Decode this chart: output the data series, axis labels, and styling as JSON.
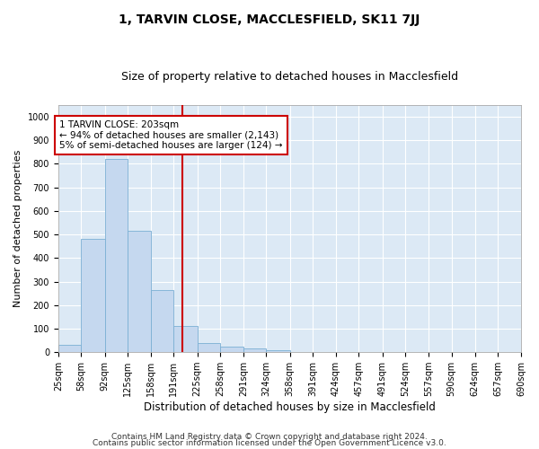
{
  "title": "1, TARVIN CLOSE, MACCLESFIELD, SK11 7JJ",
  "subtitle": "Size of property relative to detached houses in Macclesfield",
  "xlabel": "Distribution of detached houses by size in Macclesfield",
  "ylabel": "Number of detached properties",
  "footnote1": "Contains HM Land Registry data © Crown copyright and database right 2024.",
  "footnote2": "Contains public sector information licensed under the Open Government Licence v3.0.",
  "annotation_line1": "1 TARVIN CLOSE: 203sqm",
  "annotation_line2": "← 94% of detached houses are smaller (2,143)",
  "annotation_line3": "5% of semi-detached houses are larger (124) →",
  "bar_color": "#c5d8ef",
  "bar_edge_color": "#7bafd4",
  "marker_color": "#cc0000",
  "marker_value": 203,
  "bin_edges": [
    25,
    58,
    92,
    125,
    158,
    191,
    225,
    258,
    291,
    324,
    358,
    391,
    424,
    457,
    491,
    524,
    557,
    590,
    624,
    657,
    690
  ],
  "bar_heights": [
    30,
    480,
    820,
    515,
    265,
    110,
    40,
    22,
    15,
    10,
    0,
    0,
    0,
    0,
    0,
    0,
    0,
    0,
    0,
    0
  ],
  "ylim": [
    0,
    1050
  ],
  "yticks": [
    0,
    100,
    200,
    300,
    400,
    500,
    600,
    700,
    800,
    900,
    1000
  ],
  "bg_color": "#ffffff",
  "plot_bg_color": "#dce9f5",
  "grid_color": "#ffffff",
  "annotation_box_color": "#cc0000",
  "title_fontsize": 10,
  "subtitle_fontsize": 9,
  "tick_label_fontsize": 7,
  "ylabel_fontsize": 8,
  "xlabel_fontsize": 8.5,
  "footnote_fontsize": 6.5
}
